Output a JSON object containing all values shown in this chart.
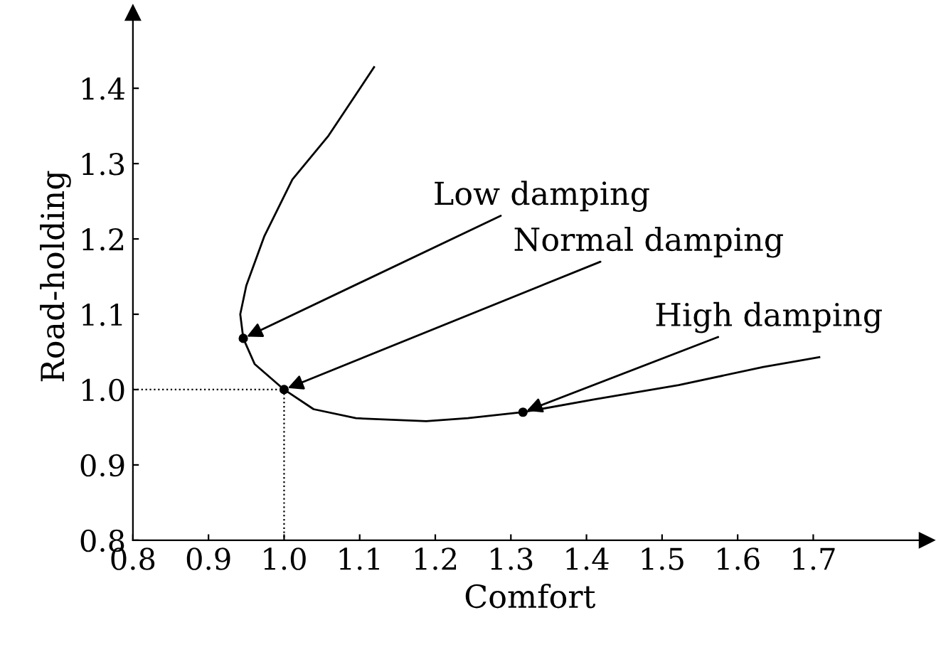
{
  "chart_data": {
    "type": "line",
    "xlabel": "Comfort",
    "ylabel": "Road-holding",
    "xlim": [
      0.8,
      1.85
    ],
    "ylim": [
      0.8,
      1.5
    ],
    "xticks": [
      0.8,
      0.9,
      {
        "value": 1,
        "label": "1.0"
      },
      1.1,
      1.2,
      1.3,
      1.4,
      1.5,
      1.6,
      1.7
    ],
    "yticks": [
      0.8,
      0.9,
      {
        "value": 1,
        "label": "1.0"
      },
      1.1,
      1.2,
      1.3,
      1.4
    ],
    "grid": false,
    "series": [
      {
        "type": "line",
        "color": "#000000",
        "marker": "none",
        "line_style": "solid",
        "x": [
          1.119,
          1.058,
          1.011,
          0.974,
          0.95,
          0.942,
          0.946,
          0.961,
          1.0,
          1.039,
          1.095,
          1.188,
          1.243,
          1.316,
          1.411,
          1.522,
          1.634,
          1.708
        ],
        "values": [
          1.428,
          1.336,
          1.279,
          1.204,
          1.138,
          1.1,
          1.068,
          1.034,
          1.0,
          0.974,
          0.962,
          0.958,
          0.962,
          0.97,
          0.987,
          1.006,
          1.03,
          1.043
        ]
      },
      {
        "type": "line",
        "color": "#000000",
        "marker": "none",
        "line_style": "dotted",
        "x": [
          0.8,
          1.0,
          1.0
        ],
        "values": [
          1.0,
          1.0,
          0.8
        ]
      },
      {
        "type": "scatter",
        "color": "#000000",
        "marker": "circle",
        "x": [
          0.946,
          1.0,
          1.316
        ],
        "values": [
          1.068,
          1.0,
          0.97
        ]
      }
    ],
    "annotations": [
      {
        "text": "Low damping",
        "x": 0.946,
        "y": 1.068
      },
      {
        "text": "Normal damping",
        "x": 1.0,
        "y": 1.0
      },
      {
        "text": "High damping",
        "x": 1.316,
        "y": 0.97
      }
    ]
  }
}
